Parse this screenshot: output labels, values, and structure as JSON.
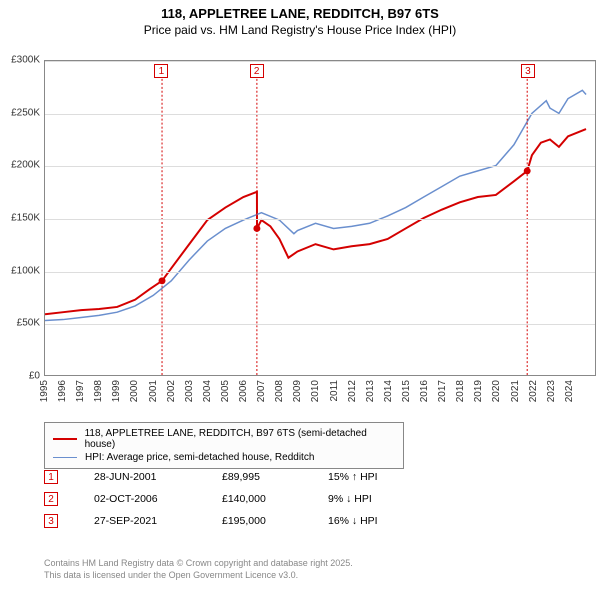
{
  "title": "118, APPLETREE LANE, REDDITCH, B97 6TS",
  "subtitle": "Price paid vs. HM Land Registry's House Price Index (HPI)",
  "colors": {
    "series_price": "#d40000",
    "series_hpi": "#6a8fce",
    "grid": "#dddddd",
    "axis": "#888888",
    "text": "#333333",
    "footer": "#888888",
    "bg": "#ffffff"
  },
  "chart": {
    "type": "line",
    "xlim": [
      1995,
      2025.5
    ],
    "ylim": [
      0,
      300000
    ],
    "ytick_step": 50000,
    "ylabels": [
      "£0",
      "£50K",
      "£100K",
      "£150K",
      "£200K",
      "£250K",
      "£300K"
    ],
    "xticks": [
      1995,
      1996,
      1997,
      1998,
      1999,
      2000,
      2001,
      2002,
      2003,
      2004,
      2005,
      2006,
      2007,
      2008,
      2009,
      2010,
      2011,
      2012,
      2013,
      2014,
      2015,
      2016,
      2017,
      2018,
      2019,
      2020,
      2021,
      2022,
      2023,
      2024
    ],
    "series": [
      {
        "name": "price_paid",
        "color": "#d40000",
        "width": 2,
        "points": [
          [
            1995,
            58000
          ],
          [
            1996,
            60000
          ],
          [
            1997,
            62000
          ],
          [
            1998,
            63000
          ],
          [
            1999,
            65000
          ],
          [
            2000,
            72000
          ],
          [
            2000.8,
            82000
          ],
          [
            2001.49,
            89995
          ],
          [
            2002,
            102000
          ],
          [
            2003,
            125000
          ],
          [
            2004,
            148000
          ],
          [
            2005,
            160000
          ],
          [
            2006,
            170000
          ],
          [
            2006.75,
            175000
          ],
          [
            2006.76,
            140000
          ],
          [
            2007,
            148000
          ],
          [
            2007.5,
            142000
          ],
          [
            2008,
            130000
          ],
          [
            2008.5,
            112000
          ],
          [
            2009,
            118000
          ],
          [
            2010,
            125000
          ],
          [
            2011,
            120000
          ],
          [
            2012,
            123000
          ],
          [
            2013,
            125000
          ],
          [
            2014,
            130000
          ],
          [
            2015,
            140000
          ],
          [
            2016,
            150000
          ],
          [
            2017,
            158000
          ],
          [
            2018,
            165000
          ],
          [
            2019,
            170000
          ],
          [
            2020,
            172000
          ],
          [
            2021,
            185000
          ],
          [
            2021.74,
            195000
          ],
          [
            2022,
            210000
          ],
          [
            2022.5,
            222000
          ],
          [
            2023,
            225000
          ],
          [
            2023.5,
            218000
          ],
          [
            2024,
            228000
          ],
          [
            2025,
            235000
          ]
        ]
      },
      {
        "name": "hpi",
        "color": "#6a8fce",
        "width": 1.5,
        "points": [
          [
            1995,
            52000
          ],
          [
            1996,
            53000
          ],
          [
            1997,
            55000
          ],
          [
            1998,
            57000
          ],
          [
            1999,
            60000
          ],
          [
            2000,
            66000
          ],
          [
            2001,
            76000
          ],
          [
            2002,
            90000
          ],
          [
            2003,
            110000
          ],
          [
            2004,
            128000
          ],
          [
            2005,
            140000
          ],
          [
            2006,
            148000
          ],
          [
            2007,
            155000
          ],
          [
            2008,
            148000
          ],
          [
            2008.8,
            135000
          ],
          [
            2009,
            138000
          ],
          [
            2010,
            145000
          ],
          [
            2011,
            140000
          ],
          [
            2012,
            142000
          ],
          [
            2013,
            145000
          ],
          [
            2014,
            152000
          ],
          [
            2015,
            160000
          ],
          [
            2016,
            170000
          ],
          [
            2017,
            180000
          ],
          [
            2018,
            190000
          ],
          [
            2019,
            195000
          ],
          [
            2020,
            200000
          ],
          [
            2021,
            220000
          ],
          [
            2022,
            250000
          ],
          [
            2022.8,
            262000
          ],
          [
            2023,
            255000
          ],
          [
            2023.5,
            250000
          ],
          [
            2024,
            264000
          ],
          [
            2024.8,
            272000
          ],
          [
            2025,
            268000
          ]
        ]
      }
    ],
    "markers": [
      {
        "n": 1,
        "x": 2001.49,
        "y": 89995,
        "color": "#d40000"
      },
      {
        "n": 2,
        "x": 2006.75,
        "y": 140000,
        "color": "#d40000"
      },
      {
        "n": 3,
        "x": 2021.74,
        "y": 195000,
        "color": "#d40000"
      }
    ]
  },
  "legend": [
    {
      "color": "#d40000",
      "width": 2,
      "label": "118, APPLETREE LANE, REDDITCH, B97 6TS (semi-detached house)"
    },
    {
      "color": "#6a8fce",
      "width": 1.5,
      "label": "HPI: Average price, semi-detached house, Redditch"
    }
  ],
  "events": [
    {
      "n": 1,
      "date": "28-JUN-2001",
      "price": "£89,995",
      "diff": "15% ↑ HPI",
      "color": "#d40000"
    },
    {
      "n": 2,
      "date": "02-OCT-2006",
      "price": "£140,000",
      "diff": "9% ↓ HPI",
      "color": "#d40000"
    },
    {
      "n": 3,
      "date": "27-SEP-2021",
      "price": "£195,000",
      "diff": "16% ↓ HPI",
      "color": "#d40000"
    }
  ],
  "footer": {
    "line1": "Contains HM Land Registry data © Crown copyright and database right 2025.",
    "line2": "This data is licensed under the Open Government Licence v3.0."
  }
}
